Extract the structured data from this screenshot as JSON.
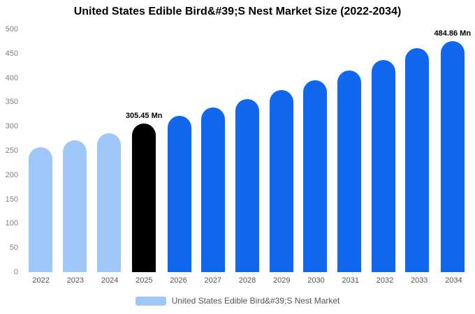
{
  "title": "United States Edible Bird&#39;S Nest Market Size (2022-2034)",
  "legend": {
    "label": "United States Edible Bird&#39;S Nest Market",
    "swatch_color": "#9FC7F8"
  },
  "chart_data": {
    "type": "bar",
    "title": "United States Edible Bird&#39;S Nest Market Size (2022-2034)",
    "xlabel": "",
    "ylabel": "",
    "categories": [
      "2022",
      "2023",
      "2024",
      "2025",
      "2026",
      "2027",
      "2028",
      "2029",
      "2030",
      "2031",
      "2032",
      "2033",
      "2034"
    ],
    "values": [
      257.6,
      271.2,
      285.6,
      305.45,
      321.5,
      338.5,
      356.3,
      375.1,
      394.8,
      415.6,
      437.5,
      460.6,
      484.86
    ],
    "bar_colors": [
      "#9FC7F8",
      "#9FC7F8",
      "#9FC7F8",
      "#000000",
      "#1168EE",
      "#1168EE",
      "#1168EE",
      "#1168EE",
      "#1168EE",
      "#1168EE",
      "#1168EE",
      "#1168EE",
      "#1168EE"
    ],
    "annotations": [
      {
        "category": "2025",
        "text": "305.45 Mn"
      },
      {
        "category": "2034",
        "text": "484.86 Mn"
      }
    ],
    "ylim": [
      0,
      500
    ],
    "yticks": [
      0,
      50,
      100,
      150,
      200,
      250,
      300,
      350,
      400,
      450,
      500
    ],
    "grid": false,
    "legend_position": "bottom",
    "series_colors": {
      "historical": "#9FC7F8",
      "current": "#000000",
      "forecast": "#1168EE"
    }
  }
}
